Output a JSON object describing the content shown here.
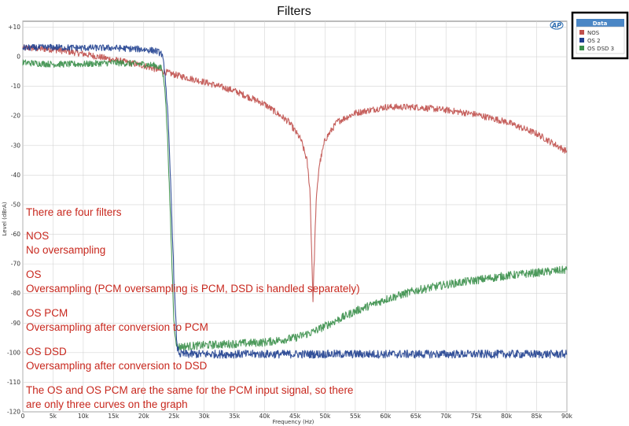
{
  "chart_data": {
    "type": "line",
    "title": "Filters",
    "xlabel": "Frequency (Hz)",
    "ylabel": "Level (dBrA)",
    "xlim": [
      0,
      90000
    ],
    "ylim": [
      -120,
      12
    ],
    "x_ticks": [
      "0",
      "5k",
      "10k",
      "15k",
      "20k",
      "25k",
      "30k",
      "35k",
      "40k",
      "45k",
      "50k",
      "55k",
      "60k",
      "65k",
      "70k",
      "75k",
      "80k",
      "85k",
      "90k"
    ],
    "y_ticks": [
      "+10",
      "0",
      "-10",
      "-20",
      "-30",
      "-40",
      "-50",
      "-60",
      "-70",
      "-80",
      "-90",
      "-100",
      "-110",
      "-120"
    ],
    "legend": {
      "title": "Data",
      "position": "top-right",
      "entries": [
        {
          "label": "NOS",
          "color": "#c0504d"
        },
        {
          "label": "OS 2",
          "color": "#1f3f8f"
        },
        {
          "label": "OS DSD 3",
          "color": "#3a8f4a"
        }
      ]
    },
    "series": [
      {
        "name": "NOS",
        "color": "#c0504d",
        "x": [
          0,
          5000,
          10000,
          15000,
          20000,
          25000,
          30000,
          35000,
          40000,
          44000,
          46000,
          47000,
          47500,
          48000,
          48500,
          49000,
          50000,
          52000,
          55000,
          60000,
          65000,
          70000,
          75000,
          80000,
          85000,
          90000
        ],
        "y": [
          3,
          2.5,
          1,
          -1,
          -3,
          -6,
          -8.5,
          -11.5,
          -16,
          -22,
          -28,
          -35,
          -45,
          -82,
          -50,
          -37,
          -28,
          -22,
          -19,
          -17,
          -17,
          -18,
          -19.5,
          -22,
          -26,
          -32
        ]
      },
      {
        "name": "OS 2",
        "color": "#1f3f8f",
        "x": [
          0,
          5000,
          10000,
          15000,
          20000,
          22000,
          23000,
          23500,
          24000,
          24500,
          25000,
          25500,
          26000,
          30000,
          40000,
          50000,
          60000,
          70000,
          80000,
          90000
        ],
        "y": [
          3,
          3.2,
          3,
          3,
          2.5,
          2,
          1,
          -5,
          -20,
          -45,
          -75,
          -98,
          -100.5,
          -100.5,
          -100.5,
          -100.5,
          -100.5,
          -100.5,
          -100.5,
          -100.5
        ]
      },
      {
        "name": "OS DSD 3",
        "color": "#3a8f4a",
        "x": [
          0,
          5000,
          10000,
          15000,
          20000,
          22000,
          23000,
          23500,
          24000,
          24500,
          25000,
          25500,
          26000,
          30000,
          35000,
          40000,
          45000,
          48000,
          50000,
          55000,
          60000,
          65000,
          70000,
          75000,
          80000,
          85000,
          90000
        ],
        "y": [
          -2,
          -2.5,
          -2.5,
          -2,
          -2.5,
          -3,
          -4,
          -10,
          -30,
          -60,
          -90,
          -98,
          -98,
          -97.5,
          -97,
          -96.5,
          -95,
          -93,
          -91,
          -86,
          -82,
          -79,
          -77,
          -75.5,
          -74,
          -73,
          -72
        ]
      }
    ],
    "annotations": [
      "There are four filters",
      "NOS",
      "No oversampling",
      "OS",
      "Oversampling (PCM oversampling is PCM, DSD is handled separately)",
      "OS PCM",
      "Oversampling after conversion to PCM",
      "OS DSD",
      "Oversampling after conversion to DSD",
      "The OS and OS PCM are the same for the PCM input signal, so there",
      "are only three curves on the graph"
    ],
    "logo_text": "AP",
    "grid": true
  }
}
